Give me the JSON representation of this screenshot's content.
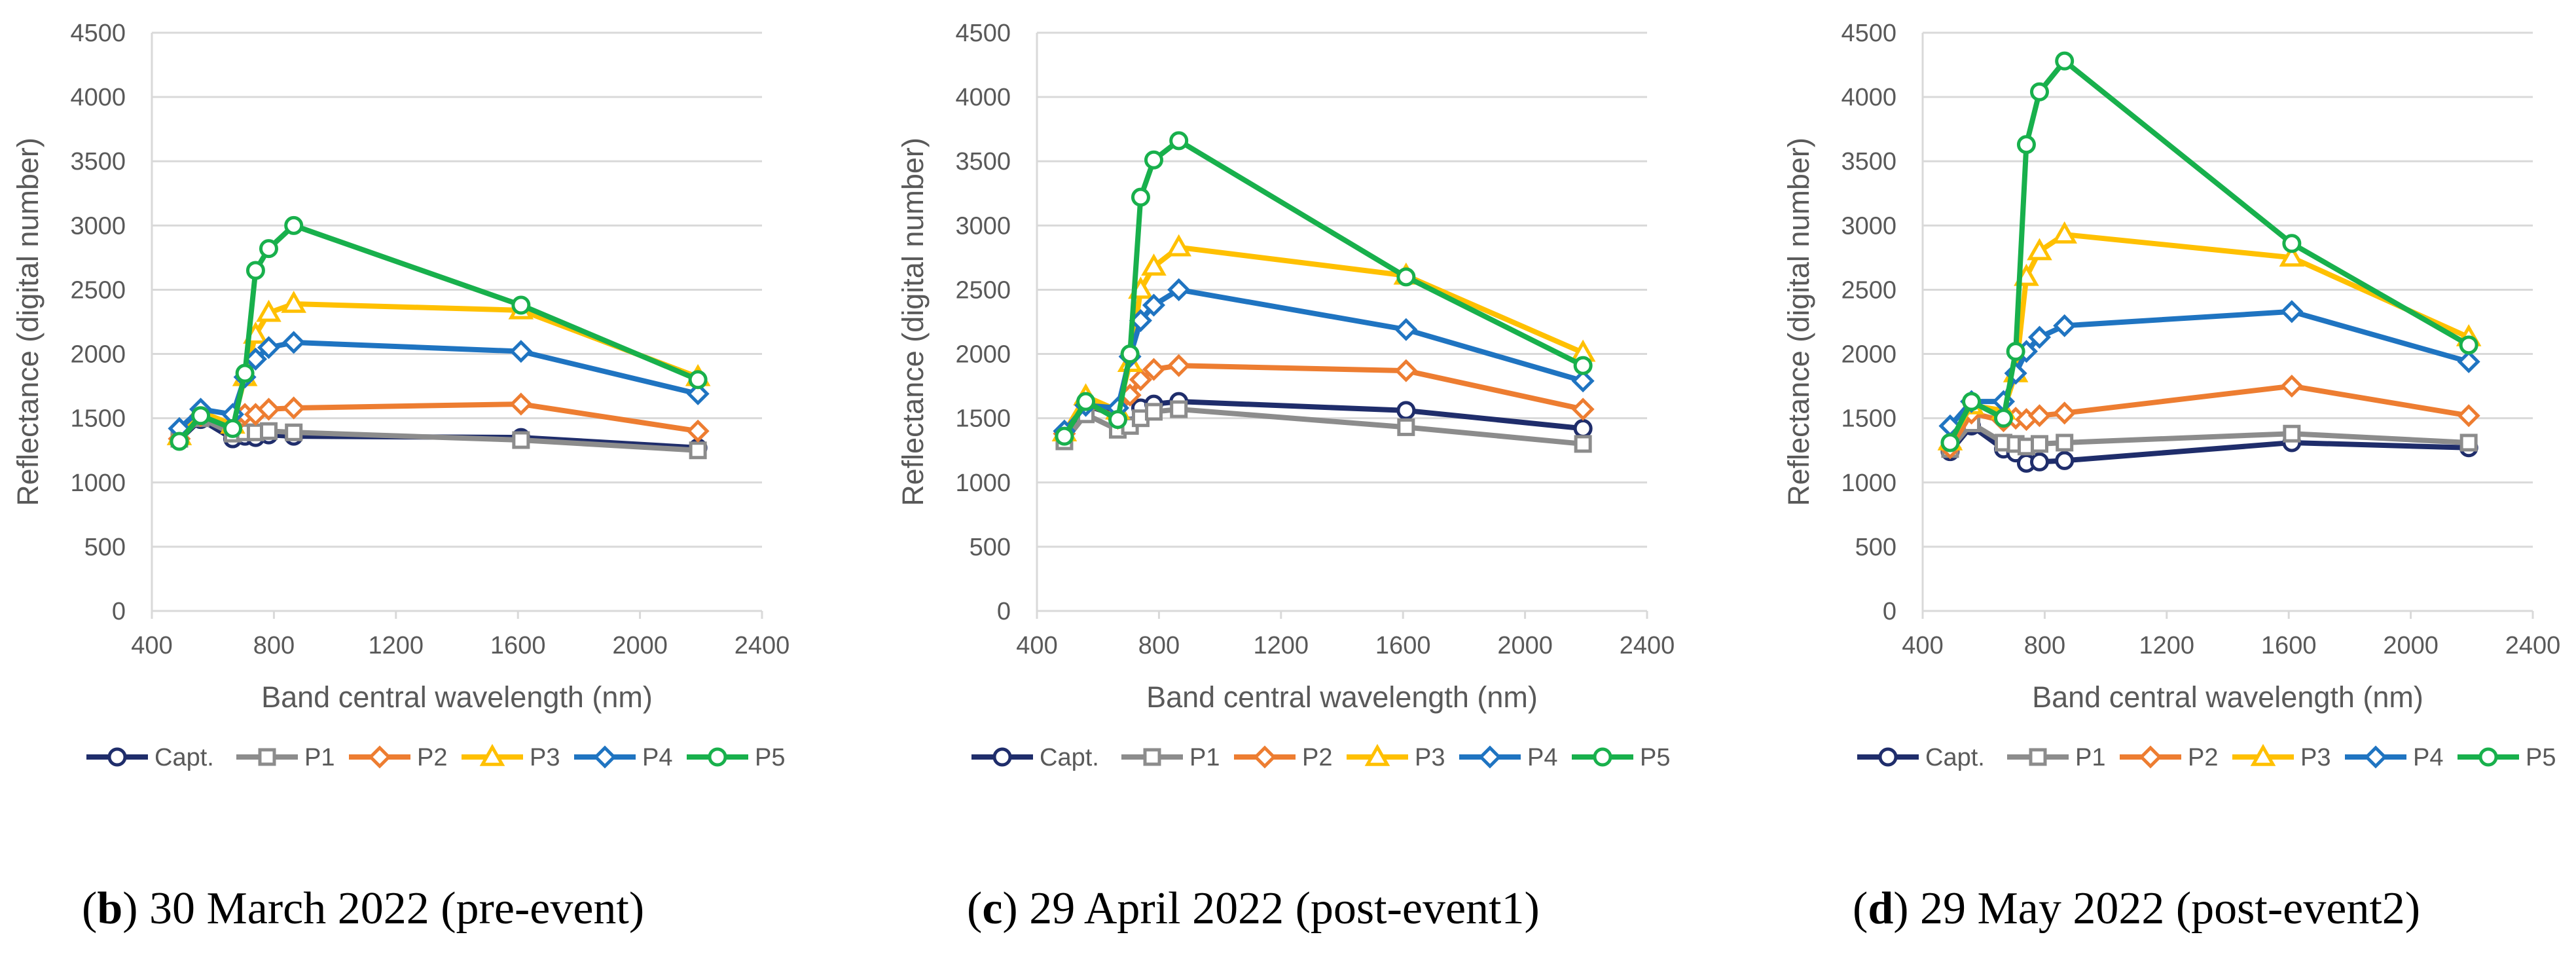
{
  "series_style": [
    {
      "name": "Capt.",
      "color": "#1f2d6b",
      "marker": "circle"
    },
    {
      "name": "P1",
      "color": "#8c8c8c",
      "marker": "square"
    },
    {
      "name": "P2",
      "color": "#ed7d31",
      "marker": "diamond"
    },
    {
      "name": "P3",
      "color": "#ffc000",
      "marker": "triangle"
    },
    {
      "name": "P4",
      "color": "#1f74c1",
      "marker": "diamond"
    },
    {
      "name": "P5",
      "color": "#18b04c",
      "marker": "circle"
    }
  ],
  "chart_data": [
    {
      "type": "line",
      "caption": {
        "letter": "b",
        "text": ") 30 March 2022 (pre-event)"
      },
      "xlabel": "Band central wavelength (nm)",
      "ylabel": "Reflectance (digital number)",
      "xlim": [
        400,
        2400
      ],
      "ylim": [
        0,
        4500
      ],
      "xticks": [
        "400",
        "800",
        "1200",
        "1600",
        "2000",
        "2400"
      ],
      "yticks": [
        "0",
        "500",
        "1000",
        "1500",
        "2000",
        "2500",
        "3000",
        "3500",
        "4000",
        "4500"
      ],
      "grid": true,
      "legend": "bottom",
      "x": [
        490,
        560,
        665,
        705,
        740,
        783,
        865,
        1610,
        2190
      ],
      "series": [
        {
          "name": "Capt.",
          "values": [
            1330,
            1490,
            1340,
            1360,
            1350,
            1370,
            1360,
            1350,
            1270
          ]
        },
        {
          "name": "P1",
          "values": [
            1340,
            1500,
            1380,
            1390,
            1390,
            1400,
            1390,
            1330,
            1250
          ]
        },
        {
          "name": "P2",
          "values": [
            1340,
            1520,
            1440,
            1530,
            1530,
            1570,
            1580,
            1610,
            1400
          ]
        },
        {
          "name": "P3",
          "values": [
            1360,
            1550,
            1450,
            1820,
            2150,
            2320,
            2390,
            2340,
            1820
          ]
        },
        {
          "name": "P4",
          "values": [
            1420,
            1570,
            1530,
            1820,
            1960,
            2050,
            2090,
            2020,
            1690
          ]
        },
        {
          "name": "P5",
          "values": [
            1320,
            1520,
            1420,
            1850,
            2650,
            2820,
            3000,
            2380,
            1800
          ]
        }
      ]
    },
    {
      "type": "line",
      "caption": {
        "letter": "c",
        "text": ") 29 April 2022 (post-event1)"
      },
      "xlabel": "Band central wavelength (nm)",
      "ylabel": "Reflectance (digital number)",
      "xlim": [
        400,
        2400
      ],
      "ylim": [
        0,
        4500
      ],
      "xticks": [
        "400",
        "800",
        "1200",
        "1600",
        "2000",
        "2400"
      ],
      "yticks": [
        "0",
        "500",
        "1000",
        "1500",
        "2000",
        "2500",
        "3000",
        "3500",
        "4000",
        "4500"
      ],
      "grid": true,
      "legend": "bottom",
      "x": [
        490,
        560,
        665,
        705,
        740,
        783,
        865,
        1610,
        2190
      ],
      "series": [
        {
          "name": "Capt.",
          "values": [
            1370,
            1600,
            1520,
            1560,
            1580,
            1610,
            1630,
            1560,
            1420
          ]
        },
        {
          "name": "P1",
          "values": [
            1320,
            1530,
            1410,
            1440,
            1500,
            1550,
            1570,
            1430,
            1300
          ]
        },
        {
          "name": "P2",
          "values": [
            1380,
            1620,
            1500,
            1680,
            1800,
            1880,
            1910,
            1870,
            1570
          ]
        },
        {
          "name": "P3",
          "values": [
            1390,
            1670,
            1560,
            1930,
            2500,
            2680,
            2830,
            2610,
            2010
          ]
        },
        {
          "name": "P4",
          "values": [
            1400,
            1600,
            1580,
            1980,
            2260,
            2380,
            2500,
            2190,
            1790
          ]
        },
        {
          "name": "P5",
          "values": [
            1360,
            1630,
            1490,
            2000,
            3220,
            3510,
            3660,
            2600,
            1910
          ]
        }
      ]
    },
    {
      "type": "line",
      "caption": {
        "letter": "d",
        "text": ") 29 May 2022 (post-event2)"
      },
      "xlabel": "Band central wavelength (nm)",
      "ylabel": "Reflectance (digital number)",
      "xlim": [
        400,
        2400
      ],
      "ylim": [
        0,
        4500
      ],
      "xticks": [
        "400",
        "800",
        "1200",
        "1600",
        "2000",
        "2400"
      ],
      "yticks": [
        "0",
        "500",
        "1000",
        "1500",
        "2000",
        "2500",
        "3000",
        "3500",
        "4000",
        "4500"
      ],
      "grid": true,
      "legend": "bottom",
      "x": [
        490,
        560,
        665,
        705,
        740,
        783,
        865,
        1610,
        2190
      ],
      "series": [
        {
          "name": "Capt.",
          "values": [
            1240,
            1440,
            1260,
            1230,
            1150,
            1160,
            1170,
            1310,
            1270
          ]
        },
        {
          "name": "P1",
          "values": [
            1260,
            1460,
            1310,
            1300,
            1280,
            1300,
            1310,
            1380,
            1310
          ]
        },
        {
          "name": "P2",
          "values": [
            1270,
            1540,
            1480,
            1500,
            1490,
            1520,
            1540,
            1750,
            1520
          ]
        },
        {
          "name": "P3",
          "values": [
            1320,
            1600,
            1560,
            1850,
            2600,
            2800,
            2930,
            2750,
            2130
          ]
        },
        {
          "name": "P4",
          "values": [
            1440,
            1630,
            1630,
            1850,
            2020,
            2130,
            2220,
            2330,
            1940
          ]
        },
        {
          "name": "P5",
          "values": [
            1310,
            1630,
            1500,
            2020,
            3630,
            4040,
            4280,
            2860,
            2070
          ]
        }
      ]
    }
  ]
}
